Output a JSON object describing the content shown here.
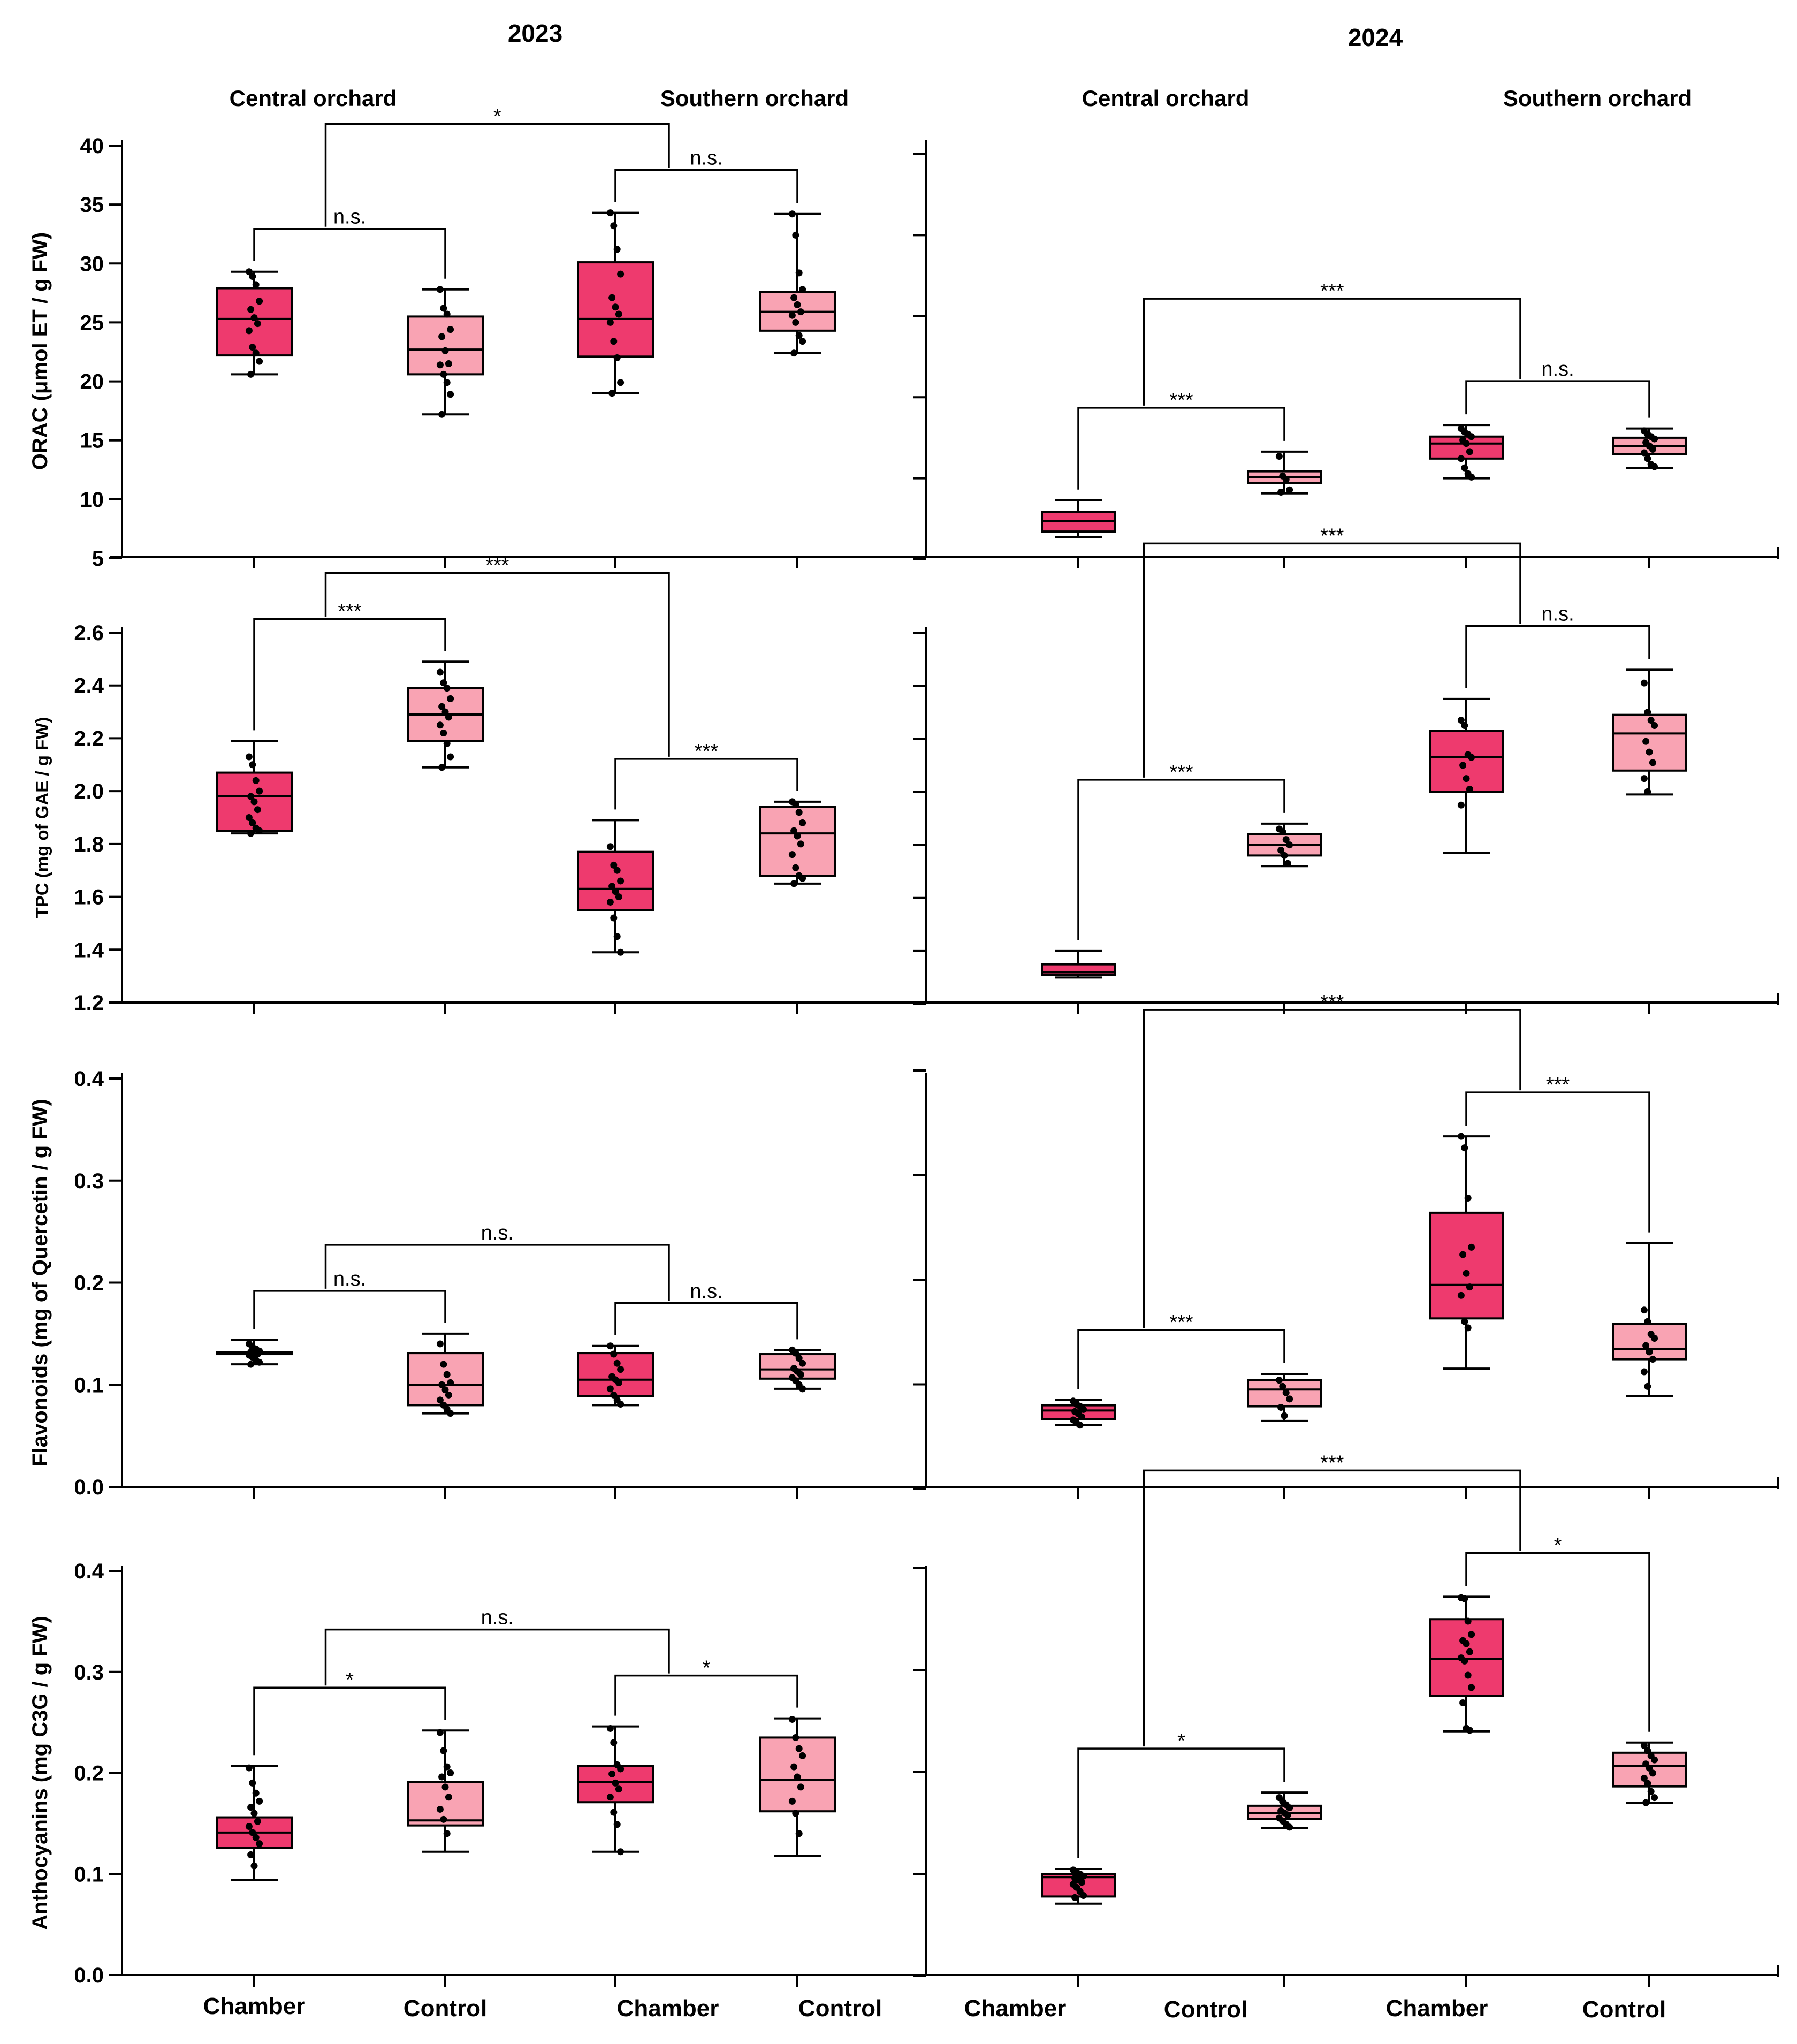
{
  "titles": {
    "left": "2023",
    "right": "2024"
  },
  "orchards": {
    "central": "Central orchard",
    "southern": "Southern orchard"
  },
  "categories": [
    "Chamber",
    "Control",
    "Chamber",
    "Control"
  ],
  "colors": {
    "chamber": "#ee3a6e",
    "control": "#f9a3b3",
    "stroke": "#000000"
  },
  "chart_data": [
    {
      "type": "box",
      "title": "2023",
      "ylabel": "ORAC (μmol ET / g FW)",
      "ylim": [
        5,
        40
      ],
      "yticks": [
        "5",
        "10",
        "15",
        "20",
        "25",
        "30",
        "35",
        "40"
      ],
      "categories": [
        "Chamber",
        "Control",
        "Chamber",
        "Control"
      ],
      "groups": [
        "Central orchard",
        "Central orchard",
        "Southern orchard",
        "Southern orchard"
      ],
      "boxes": [
        {
          "min": 20.6,
          "q1": 22.2,
          "median": 25.3,
          "q3": 27.9,
          "max": 29.3,
          "points": [
            29.3,
            28.9,
            28.2,
            26.8,
            26.1,
            25.4,
            24.9,
            24.3,
            22.9,
            22.4,
            21.7,
            20.6
          ]
        },
        {
          "min": 17.2,
          "q1": 20.6,
          "median": 22.7,
          "q3": 25.5,
          "max": 27.8,
          "points": [
            27.8,
            26.2,
            25.7,
            24.4,
            23.8,
            22.6,
            21.5,
            21.4,
            20.6,
            19.9,
            18.9,
            17.2
          ]
        },
        {
          "min": 19.0,
          "q1": 22.1,
          "median": 25.3,
          "q3": 30.1,
          "max": 34.3,
          "points": [
            34.3,
            33.2,
            31.2,
            29.1,
            27.1,
            26.3,
            25.7,
            25.0,
            23.4,
            22.0,
            19.9,
            19.0
          ]
        },
        {
          "min": 22.4,
          "q1": 24.3,
          "median": 25.9,
          "q3": 27.6,
          "max": 34.2,
          "points": [
            34.2,
            32.4,
            29.2,
            27.8,
            27.1,
            26.5,
            25.9,
            25.6,
            25.0,
            23.9,
            23.4,
            22.4
          ]
        }
      ],
      "comparisons": [
        {
          "a": 0,
          "b": 1,
          "label": "n.s."
        },
        {
          "a": 2,
          "b": 3,
          "label": "n.s."
        },
        {
          "a": 0.5,
          "b": 2.5,
          "label": "*"
        }
      ]
    },
    {
      "type": "box",
      "title": "2024",
      "ylabel": "",
      "ylim": [
        5,
        40
      ],
      "yticks": [],
      "categories": [
        "Chamber",
        "Control",
        "Chamber",
        "Control"
      ],
      "groups": [
        "Central orchard",
        "Central orchard",
        "Southern orchard",
        "Southern orchard"
      ],
      "boxes": [
        {
          "min": 6.9,
          "q1": 7.4,
          "median": 8.3,
          "q3": 9.1,
          "max": 10.1,
          "points": []
        },
        {
          "min": 10.7,
          "q1": 11.6,
          "median": 12.1,
          "q3": 12.6,
          "max": 14.3,
          "points": [
            13.9,
            12.2,
            11.9,
            11.0,
            10.8
          ]
        },
        {
          "min": 12.0,
          "q1": 13.7,
          "median": 15.0,
          "q3": 15.6,
          "max": 16.6,
          "points": [
            16.3,
            16.0,
            15.8,
            15.6,
            15.3,
            15.0,
            14.3,
            13.7,
            12.9,
            12.4,
            12.1
          ]
        },
        {
          "min": 12.9,
          "q1": 14.1,
          "median": 14.8,
          "q3": 15.5,
          "max": 16.3,
          "points": [
            16.1,
            15.8,
            15.6,
            15.4,
            15.1,
            14.8,
            14.5,
            14.2,
            13.7,
            13.2,
            13.0
          ]
        }
      ],
      "comparisons": [
        {
          "a": 0,
          "b": 1,
          "label": "***"
        },
        {
          "a": 2,
          "b": 3,
          "label": "n.s."
        },
        {
          "a": 0.5,
          "b": 2.5,
          "label": "***"
        }
      ]
    },
    {
      "type": "box",
      "title": "2023",
      "ylabel": "TPC (mg of GAE / g FW)",
      "ylim": [
        1.2,
        2.6
      ],
      "yticks": [
        "1.2",
        "1.4",
        "1.6",
        "1.8",
        "2.0",
        "2.2",
        "2.4",
        "2.6"
      ],
      "categories": [
        "Chamber",
        "Control",
        "Chamber",
        "Control"
      ],
      "groups": [
        "Central orchard",
        "Central orchard",
        "Southern orchard",
        "Southern orchard"
      ],
      "boxes": [
        {
          "min": 1.84,
          "q1": 1.85,
          "median": 1.98,
          "q3": 2.07,
          "max": 2.19,
          "points": [
            2.13,
            2.1,
            2.04,
            2.0,
            1.98,
            1.96,
            1.93,
            1.9,
            1.88,
            1.86,
            1.85,
            1.84
          ]
        },
        {
          "min": 2.09,
          "q1": 2.19,
          "median": 2.29,
          "q3": 2.39,
          "max": 2.49,
          "points": [
            2.45,
            2.41,
            2.39,
            2.35,
            2.32,
            2.3,
            2.28,
            2.25,
            2.22,
            2.18,
            2.13,
            2.09
          ]
        },
        {
          "min": 1.39,
          "q1": 1.55,
          "median": 1.63,
          "q3": 1.77,
          "max": 1.89,
          "points": [
            1.79,
            1.72,
            1.7,
            1.66,
            1.64,
            1.62,
            1.6,
            1.58,
            1.52,
            1.45,
            1.39
          ]
        },
        {
          "min": 1.65,
          "q1": 1.68,
          "median": 1.84,
          "q3": 1.94,
          "max": 1.96,
          "points": [
            1.96,
            1.95,
            1.92,
            1.88,
            1.85,
            1.83,
            1.8,
            1.76,
            1.71,
            1.68,
            1.67,
            1.65
          ]
        }
      ],
      "comparisons": [
        {
          "a": 0,
          "b": 1,
          "label": "***"
        },
        {
          "a": 2,
          "b": 3,
          "label": "***"
        },
        {
          "a": 0.5,
          "b": 2.5,
          "label": "***"
        }
      ]
    },
    {
      "type": "box",
      "title": "2024",
      "ylabel": "",
      "ylim": [
        1.2,
        2.6
      ],
      "yticks": [],
      "categories": [
        "Chamber",
        "Control",
        "Chamber",
        "Control"
      ],
      "groups": [
        "Central orchard",
        "Central orchard",
        "Southern orchard",
        "Southern orchard"
      ],
      "boxes": [
        {
          "min": 1.3,
          "q1": 1.31,
          "median": 1.32,
          "q3": 1.35,
          "max": 1.4,
          "points": []
        },
        {
          "min": 1.72,
          "q1": 1.76,
          "median": 1.8,
          "q3": 1.84,
          "max": 1.88,
          "points": [
            1.86,
            1.85,
            1.82,
            1.8,
            1.78,
            1.76,
            1.73
          ]
        },
        {
          "min": 1.77,
          "q1": 2.0,
          "median": 2.13,
          "q3": 2.23,
          "max": 2.35,
          "points": [
            2.27,
            2.25,
            2.14,
            2.13,
            2.1,
            2.05,
            2.01,
            1.95
          ]
        },
        {
          "min": 1.99,
          "q1": 2.08,
          "median": 2.22,
          "q3": 2.29,
          "max": 2.46,
          "points": [
            2.41,
            2.3,
            2.27,
            2.25,
            2.19,
            2.15,
            2.11,
            2.05,
            2.0
          ]
        }
      ],
      "comparisons": [
        {
          "a": 0,
          "b": 1,
          "label": "***"
        },
        {
          "a": 2,
          "b": 3,
          "label": "n.s."
        },
        {
          "a": 0.5,
          "b": 2.5,
          "label": "***"
        }
      ]
    },
    {
      "type": "box",
      "title": "2023",
      "ylabel": "Flavonoids (mg of Quercetin / g FW)",
      "ylim": [
        0,
        0.4
      ],
      "yticks": [
        "0.0",
        "0.1",
        "0.2",
        "0.3",
        "0.4"
      ],
      "categories": [
        "Chamber",
        "Control",
        "Chamber",
        "Control"
      ],
      "groups": [
        "Central orchard",
        "Central orchard",
        "Southern orchard",
        "Southern orchard"
      ],
      "boxes": [
        {
          "min": 0.12,
          "q1": 0.13,
          "median": 0.131,
          "q3": 0.132,
          "max": 0.144,
          "points": [
            0.14,
            0.137,
            0.135,
            0.133,
            0.132,
            0.131,
            0.13,
            0.129,
            0.127,
            0.124,
            0.122,
            0.12
          ]
        },
        {
          "min": 0.072,
          "q1": 0.08,
          "median": 0.1,
          "q3": 0.131,
          "max": 0.15,
          "points": [
            0.14,
            0.12,
            0.11,
            0.102,
            0.1,
            0.095,
            0.09,
            0.085,
            0.08,
            0.076,
            0.072
          ]
        },
        {
          "min": 0.08,
          "q1": 0.089,
          "median": 0.105,
          "q3": 0.131,
          "max": 0.138,
          "points": [
            0.138,
            0.13,
            0.121,
            0.115,
            0.108,
            0.105,
            0.102,
            0.096,
            0.09,
            0.085,
            0.081
          ]
        },
        {
          "min": 0.096,
          "q1": 0.106,
          "median": 0.115,
          "q3": 0.13,
          "max": 0.134,
          "points": [
            0.134,
            0.131,
            0.126,
            0.121,
            0.116,
            0.113,
            0.11,
            0.107,
            0.104,
            0.1,
            0.096
          ]
        }
      ],
      "comparisons": [
        {
          "a": 0,
          "b": 1,
          "label": "n.s."
        },
        {
          "a": 2,
          "b": 3,
          "label": "n.s."
        },
        {
          "a": 0.5,
          "b": 2.5,
          "label": "n.s."
        }
      ]
    },
    {
      "type": "box",
      "title": "2024",
      "ylabel": "",
      "ylim": [
        0,
        0.4
      ],
      "yticks": [],
      "categories": [
        "Chamber",
        "Control",
        "Chamber",
        "Control"
      ],
      "groups": [
        "Central orchard",
        "Central orchard",
        "Southern orchard",
        "Southern orchard"
      ],
      "boxes": [
        {
          "min": 0.061,
          "q1": 0.067,
          "median": 0.075,
          "q3": 0.08,
          "max": 0.085,
          "points": [
            0.084,
            0.081,
            0.079,
            0.076,
            0.074,
            0.072,
            0.069,
            0.066,
            0.063,
            0.061
          ]
        },
        {
          "min": 0.065,
          "q1": 0.079,
          "median": 0.095,
          "q3": 0.104,
          "max": 0.11,
          "points": [
            0.104,
            0.098,
            0.092,
            0.086,
            0.078,
            0.07
          ]
        },
        {
          "min": 0.115,
          "q1": 0.163,
          "median": 0.195,
          "q3": 0.264,
          "max": 0.337,
          "points": [
            0.337,
            0.326,
            0.278,
            0.231,
            0.224,
            0.206,
            0.193,
            0.185,
            0.16,
            0.154
          ]
        },
        {
          "min": 0.089,
          "q1": 0.124,
          "median": 0.134,
          "q3": 0.158,
          "max": 0.235,
          "points": [
            0.171,
            0.16,
            0.148,
            0.144,
            0.137,
            0.131,
            0.124,
            0.112,
            0.098
          ]
        }
      ],
      "comparisons": [
        {
          "a": 0,
          "b": 1,
          "label": "***"
        },
        {
          "a": 2,
          "b": 3,
          "label": "***"
        },
        {
          "a": 0.5,
          "b": 2.5,
          "label": "***"
        }
      ]
    },
    {
      "type": "box",
      "title": "2023",
      "ylabel": "Anthocyanins (mg C3G / g FW)",
      "ylim": [
        0,
        0.4
      ],
      "yticks": [
        "0.0",
        "0.1",
        "0.2",
        "0.3",
        "0.4"
      ],
      "categories": [
        "Chamber",
        "Control",
        "Chamber",
        "Control"
      ],
      "groups": [
        "Central orchard",
        "Central orchard",
        "Southern orchard",
        "Southern orchard"
      ],
      "boxes": [
        {
          "min": 0.094,
          "q1": 0.126,
          "median": 0.141,
          "q3": 0.156,
          "max": 0.207,
          "points": [
            0.205,
            0.19,
            0.18,
            0.172,
            0.166,
            0.16,
            0.152,
            0.147,
            0.141,
            0.136,
            0.13,
            0.119,
            0.108
          ]
        },
        {
          "min": 0.122,
          "q1": 0.148,
          "median": 0.153,
          "q3": 0.191,
          "max": 0.242,
          "points": [
            0.24,
            0.222,
            0.206,
            0.2,
            0.196,
            0.186,
            0.176,
            0.164,
            0.154,
            0.14
          ]
        },
        {
          "min": 0.122,
          "q1": 0.171,
          "median": 0.191,
          "q3": 0.207,
          "max": 0.246,
          "points": [
            0.244,
            0.23,
            0.208,
            0.204,
            0.199,
            0.19,
            0.184,
            0.176,
            0.161,
            0.149,
            0.122
          ]
        },
        {
          "min": 0.118,
          "q1": 0.162,
          "median": 0.193,
          "q3": 0.235,
          "max": 0.254,
          "points": [
            0.253,
            0.235,
            0.224,
            0.217,
            0.206,
            0.196,
            0.186,
            0.172,
            0.16,
            0.14
          ]
        }
      ],
      "comparisons": [
        {
          "a": 0,
          "b": 1,
          "label": "*"
        },
        {
          "a": 2,
          "b": 3,
          "label": "*"
        },
        {
          "a": 0.5,
          "b": 2.5,
          "label": "n.s."
        }
      ]
    },
    {
      "type": "box",
      "title": "2024",
      "ylabel": "",
      "ylim": [
        0,
        0.4
      ],
      "yticks": [],
      "categories": [
        "Chamber",
        "Control",
        "Chamber",
        "Control"
      ],
      "groups": [
        "Central orchard",
        "Central orchard",
        "Southern orchard",
        "Southern orchard"
      ],
      "boxes": [
        {
          "min": 0.071,
          "q1": 0.078,
          "median": 0.097,
          "q3": 0.1,
          "max": 0.105,
          "points": [
            0.104,
            0.102,
            0.1,
            0.098,
            0.096,
            0.094,
            0.092,
            0.09,
            0.087,
            0.083,
            0.079,
            0.077
          ]
        },
        {
          "min": 0.145,
          "q1": 0.154,
          "median": 0.16,
          "q3": 0.167,
          "max": 0.18,
          "points": [
            0.175,
            0.171,
            0.168,
            0.165,
            0.162,
            0.16,
            0.158,
            0.155,
            0.152,
            0.149,
            0.146
          ]
        },
        {
          "min": 0.24,
          "q1": 0.275,
          "median": 0.311,
          "q3": 0.35,
          "max": 0.372,
          "points": [
            0.371,
            0.37,
            0.348,
            0.335,
            0.329,
            0.326,
            0.318,
            0.312,
            0.309,
            0.295,
            0.283,
            0.268,
            0.243,
            0.241
          ]
        },
        {
          "min": 0.17,
          "q1": 0.186,
          "median": 0.206,
          "q3": 0.219,
          "max": 0.229,
          "points": [
            0.226,
            0.221,
            0.216,
            0.212,
            0.208,
            0.204,
            0.199,
            0.194,
            0.189,
            0.181,
            0.175,
            0.17
          ]
        }
      ],
      "comparisons": [
        {
          "a": 0,
          "b": 1,
          "label": "*"
        },
        {
          "a": 2,
          "b": 3,
          "label": "*"
        },
        {
          "a": 0.5,
          "b": 2.5,
          "label": "***"
        }
      ]
    }
  ]
}
